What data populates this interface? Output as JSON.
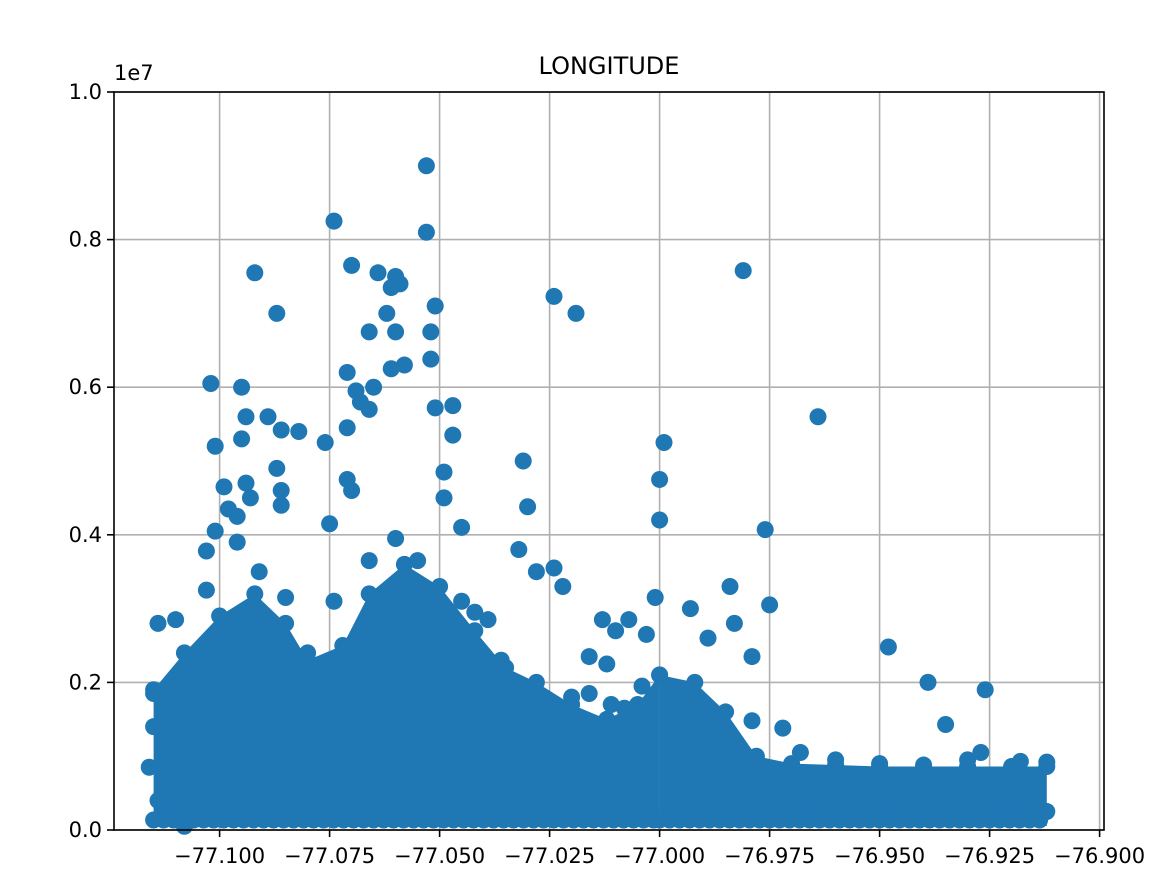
{
  "chart_data": {
    "type": "scatter",
    "title": "LONGITUDE",
    "xlabel": "",
    "ylabel": "",
    "y_offset_label": "1e7",
    "xlim": [
      -77.124,
      -76.899
    ],
    "ylim": [
      0,
      10000000
    ],
    "grid": true,
    "marker_color": "#1f77b4",
    "x_ticks": [
      -77.1,
      -77.075,
      -77.05,
      -77.025,
      -77.0,
      -76.975,
      -76.95,
      -76.925,
      -76.9
    ],
    "x_tick_labels": [
      "−77.100",
      "−77.075",
      "−77.050",
      "−77.025",
      "−77.000",
      "−76.975",
      "−76.950",
      "−76.925",
      "−76.900"
    ],
    "y_ticks": [
      0,
      2000000,
      4000000,
      6000000,
      8000000,
      10000000
    ],
    "y_tick_labels": [
      "0.0",
      "0.2",
      "0.4",
      "0.6",
      "0.8",
      "1.0"
    ],
    "series": [
      {
        "name": "",
        "points": [
          [
            -77.053,
            9000000
          ],
          [
            -77.053,
            8100000
          ],
          [
            -77.074,
            8250000
          ],
          [
            -77.092,
            7550000
          ],
          [
            -77.087,
            7000000
          ],
          [
            -77.07,
            7650000
          ],
          [
            -77.064,
            7550000
          ],
          [
            -77.06,
            7500000
          ],
          [
            -77.059,
            7400000
          ],
          [
            -77.061,
            7350000
          ],
          [
            -77.062,
            7000000
          ],
          [
            -77.066,
            6750000
          ],
          [
            -77.06,
            6750000
          ],
          [
            -77.052,
            6750000
          ],
          [
            -77.051,
            7100000
          ],
          [
            -77.061,
            6250000
          ],
          [
            -77.058,
            6300000
          ],
          [
            -77.052,
            6380000
          ],
          [
            -77.024,
            7230000
          ],
          [
            -77.019,
            7000000
          ],
          [
            -76.981,
            7580000
          ],
          [
            -77.071,
            6200000
          ],
          [
            -77.069,
            5950000
          ],
          [
            -77.065,
            6000000
          ],
          [
            -77.102,
            6050000
          ],
          [
            -77.095,
            6000000
          ],
          [
            -77.094,
            5600000
          ],
          [
            -77.089,
            5600000
          ],
          [
            -77.086,
            5420000
          ],
          [
            -77.082,
            5400000
          ],
          [
            -77.068,
            5800000
          ],
          [
            -77.066,
            5700000
          ],
          [
            -77.051,
            5720000
          ],
          [
            -77.047,
            5750000
          ],
          [
            -77.071,
            5450000
          ],
          [
            -77.076,
            5250000
          ],
          [
            -77.047,
            5350000
          ],
          [
            -77.101,
            5200000
          ],
          [
            -77.095,
            5300000
          ],
          [
            -77.087,
            4900000
          ],
          [
            -77.093,
            4500000
          ],
          [
            -77.099,
            4650000
          ],
          [
            -77.094,
            4700000
          ],
          [
            -77.086,
            4600000
          ],
          [
            -77.086,
            4400000
          ],
          [
            -77.071,
            4750000
          ],
          [
            -77.07,
            4600000
          ],
          [
            -77.049,
            4850000
          ],
          [
            -77.049,
            4500000
          ],
          [
            -76.999,
            5250000
          ],
          [
            -77.0,
            4750000
          ],
          [
            -77.0,
            4200000
          ],
          [
            -77.031,
            5000000
          ],
          [
            -77.03,
            4380000
          ],
          [
            -76.964,
            5600000
          ],
          [
            -76.976,
            4070000
          ],
          [
            -77.103,
            3780000
          ],
          [
            -77.101,
            4050000
          ],
          [
            -77.096,
            3900000
          ],
          [
            -77.096,
            4250000
          ],
          [
            -77.098,
            4350000
          ],
          [
            -77.075,
            4150000
          ],
          [
            -77.045,
            4100000
          ],
          [
            -77.032,
            3800000
          ],
          [
            -77.028,
            3500000
          ],
          [
            -77.024,
            3550000
          ],
          [
            -77.022,
            3300000
          ],
          [
            -77.013,
            2850000
          ],
          [
            -77.01,
            2700000
          ],
          [
            -77.007,
            2850000
          ],
          [
            -77.001,
            3150000
          ],
          [
            -77.003,
            2650000
          ],
          [
            -76.993,
            3000000
          ],
          [
            -76.989,
            2600000
          ],
          [
            -76.984,
            3300000
          ],
          [
            -76.983,
            2800000
          ],
          [
            -76.979,
            2350000
          ],
          [
            -76.975,
            3050000
          ],
          [
            -76.948,
            2480000
          ],
          [
            -76.939,
            2000000
          ],
          [
            -76.926,
            1900000
          ],
          [
            -76.972,
            1380000
          ],
          [
            -76.979,
            1480000
          ],
          [
            -77.114,
            2800000
          ],
          [
            -77.11,
            2850000
          ],
          [
            -77.107,
            2300000
          ],
          [
            -77.103,
            3250000
          ],
          [
            -77.091,
            3500000
          ],
          [
            -77.085,
            3150000
          ],
          [
            -77.08,
            2400000
          ],
          [
            -77.074,
            3100000
          ],
          [
            -77.066,
            3650000
          ],
          [
            -77.06,
            3950000
          ],
          [
            -77.055,
            3650000
          ],
          [
            -77.042,
            2950000
          ],
          [
            -77.039,
            2850000
          ],
          [
            -77.036,
            2300000
          ],
          [
            -77.045,
            3100000
          ],
          [
            -77.016,
            2350000
          ],
          [
            -77.012,
            2250000
          ],
          [
            -77.016,
            1850000
          ],
          [
            -77.02,
            1800000
          ],
          [
            -77.011,
            1700000
          ],
          [
            -77.008,
            1650000
          ],
          [
            -77.004,
            1950000
          ],
          [
            -76.995,
            1700000
          ],
          [
            -76.991,
            1550000
          ],
          [
            -76.968,
            1050000
          ],
          [
            -76.96,
            950000
          ],
          [
            -76.95,
            900000
          ],
          [
            -76.94,
            880000
          ],
          [
            -76.93,
            950000
          ],
          [
            -76.918,
            930000
          ],
          [
            -76.912,
            920000
          ],
          [
            -76.914,
            720000
          ],
          [
            -76.935,
            1430000
          ],
          [
            -76.927,
            1050000
          ],
          [
            -76.945,
            600000
          ],
          [
            -76.955,
            500000
          ],
          [
            -76.935,
            450000
          ],
          [
            -76.92,
            350000
          ],
          [
            -76.912,
            250000
          ],
          [
            -76.925,
            250000
          ],
          [
            -76.941,
            300000
          ],
          [
            -76.955,
            200000
          ],
          [
            -76.965,
            400000
          ],
          [
            -76.975,
            600000
          ],
          [
            -76.985,
            900000
          ],
          [
            -76.99,
            1200000
          ],
          [
            -77.115,
            1850000
          ],
          [
            -77.115,
            1400000
          ],
          [
            -77.116,
            850000
          ],
          [
            -77.114,
            400000
          ],
          [
            -77.111,
            200000
          ],
          [
            -77.108,
            50000
          ],
          [
            -77.1,
            150000
          ]
        ]
      }
    ],
    "dense_regions": [
      {
        "x": [
          -77.115,
          -77.0
        ],
        "y_max_profile": [
          [
            -77.115,
            1900000
          ],
          [
            -77.108,
            2400000
          ],
          [
            -77.1,
            2900000
          ],
          [
            -77.092,
            3200000
          ],
          [
            -77.085,
            2800000
          ],
          [
            -77.08,
            2300000
          ],
          [
            -77.072,
            2500000
          ],
          [
            -77.066,
            3200000
          ],
          [
            -77.058,
            3600000
          ],
          [
            -77.05,
            3300000
          ],
          [
            -77.042,
            2700000
          ],
          [
            -77.035,
            2200000
          ],
          [
            -77.028,
            2000000
          ],
          [
            -77.02,
            1700000
          ],
          [
            -77.012,
            1500000
          ],
          [
            -77.005,
            1700000
          ],
          [
            -77.0,
            2100000
          ]
        ]
      },
      {
        "x": [
          -77.0,
          -76.912
        ],
        "y_max_profile": [
          [
            -77.0,
            2100000
          ],
          [
            -76.992,
            2000000
          ],
          [
            -76.985,
            1600000
          ],
          [
            -76.978,
            1000000
          ],
          [
            -76.97,
            900000
          ],
          [
            -76.96,
            880000
          ],
          [
            -76.95,
            860000
          ],
          [
            -76.94,
            860000
          ],
          [
            -76.93,
            860000
          ],
          [
            -76.92,
            860000
          ],
          [
            -76.912,
            860000
          ]
        ]
      }
    ]
  }
}
